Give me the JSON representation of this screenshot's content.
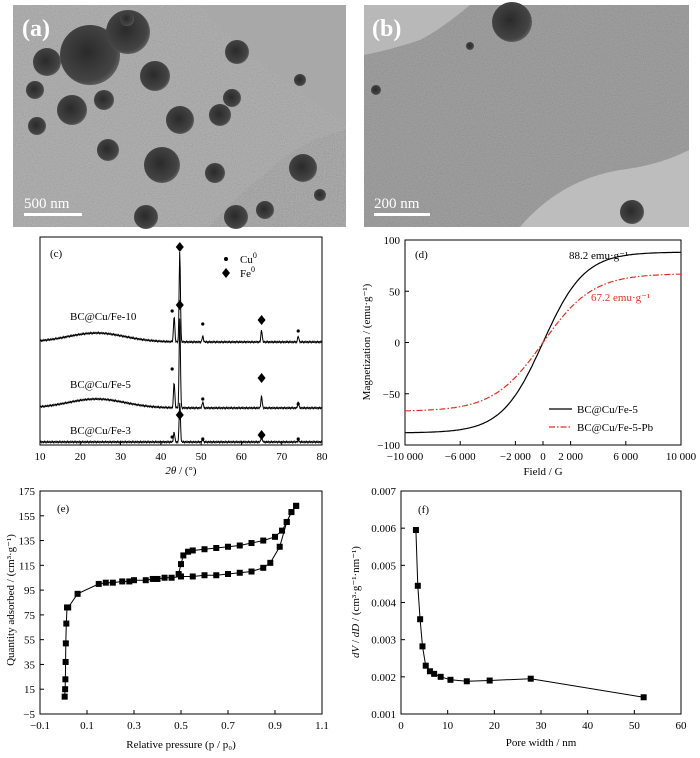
{
  "panels": {
    "a": {
      "label": "(a)",
      "scale_bar": "500 nm"
    },
    "b": {
      "label": "(b)",
      "scale_bar": "200 nm"
    }
  },
  "chart_data": [
    {
      "id": "c",
      "type": "line",
      "panel_label": "(c)",
      "xlabel_italic": "2θ",
      "xlabel_unit": " / (°)",
      "xlim": [
        10,
        80
      ],
      "xticks": [
        10,
        20,
        30,
        40,
        50,
        60,
        70,
        80
      ],
      "legend": [
        {
          "marker": "dot",
          "label": "Cu",
          "sup": "0"
        },
        {
          "marker": "diamond",
          "label": "Fe",
          "sup": "0"
        }
      ],
      "series": [
        {
          "name": "BC@Cu/Fe-10",
          "offset": 2.0
        },
        {
          "name": "BC@Cu/Fe-5",
          "offset": 1.0
        },
        {
          "name": "BC@Cu/Fe-3",
          "offset": 0.0
        }
      ],
      "fe_peaks": [
        44.7,
        65.0
      ],
      "cu_peaks": [
        43.3,
        50.4,
        74.1
      ]
    },
    {
      "id": "d",
      "type": "line",
      "panel_label": "(d)",
      "xlabel": "Field / G",
      "ylabel": "Magnetization / (emu·g⁻¹)",
      "xlim": [
        -10000,
        10000
      ],
      "ylim": [
        -100,
        100
      ],
      "xticks": [
        -10000,
        -6000,
        -2000,
        0,
        2000,
        6000,
        10000
      ],
      "xtick_labels": [
        "−10 000",
        "−6 000",
        "−2 000",
        "0",
        "2 000",
        "6 000",
        "10 000"
      ],
      "yticks": [
        -100,
        -50,
        0,
        50,
        100
      ],
      "ytick_labels": [
        "−100",
        "−50",
        "0",
        "50",
        "100"
      ],
      "series": [
        {
          "name": "BC@Cu/Fe-5",
          "color": "#000000",
          "ms": 88.2,
          "annotation": "88.2 emu·g⁻¹"
        },
        {
          "name": "BC@Cu/Fe-5-Pb",
          "color": "#e03020",
          "ms": 67.2,
          "annotation": "67.2 emu·g⁻¹"
        }
      ]
    },
    {
      "id": "e",
      "type": "scatter",
      "panel_label": "(e)",
      "xlabel": "Relative pressure (p / p₀)",
      "ylabel": "Quantity adsorbed / (cm³·g⁻¹)",
      "xlim": [
        -0.1,
        1.1
      ],
      "ylim": [
        -5,
        175
      ],
      "xticks": [
        -0.1,
        0.1,
        0.3,
        0.5,
        0.7,
        0.9,
        1.1
      ],
      "xtick_labels": [
        "−0.1",
        "0.1",
        "0.3",
        "0.5",
        "0.7",
        "0.9",
        "1.1"
      ],
      "yticks": [
        -5,
        15,
        35,
        55,
        75,
        95,
        115,
        135,
        155,
        175
      ],
      "ytick_labels": [
        "−5",
        "15",
        "35",
        "55",
        "75",
        "95",
        "115",
        "135",
        "155",
        "175"
      ],
      "adsorption": {
        "x": [
          0.005,
          0.007,
          0.008,
          0.009,
          0.01,
          0.012,
          0.015,
          0.02,
          0.06,
          0.15,
          0.18,
          0.21,
          0.25,
          0.28,
          0.3,
          0.35,
          0.38,
          0.4,
          0.43,
          0.46,
          0.5,
          0.55,
          0.6,
          0.65,
          0.7,
          0.75,
          0.8,
          0.85,
          0.88,
          0.92,
          0.95,
          0.97,
          0.99
        ],
        "y": [
          9,
          15,
          23,
          37,
          52,
          68,
          81,
          81,
          92,
          100,
          101,
          101,
          102,
          102,
          103,
          103,
          104,
          104,
          105,
          105,
          106,
          106,
          107,
          107,
          108,
          109,
          110,
          113,
          117,
          130,
          150,
          158,
          163
        ]
      },
      "desorption": {
        "x": [
          0.99,
          0.97,
          0.95,
          0.93,
          0.9,
          0.85,
          0.8,
          0.75,
          0.7,
          0.65,
          0.6,
          0.55,
          0.53,
          0.51,
          0.5,
          0.49
        ],
        "y": [
          163,
          158,
          150,
          143,
          138,
          135,
          133,
          131,
          130,
          129,
          128,
          127,
          126,
          123,
          116,
          108
        ]
      }
    },
    {
      "id": "f",
      "type": "line",
      "panel_label": "(f)",
      "xlabel": "Pore width / nm",
      "ylabel_italic1": "dV",
      "ylabel_mid": " / ",
      "ylabel_italic2": "dD",
      "ylabel_unit": " / (cm³·g⁻¹·nm⁻¹)",
      "xlim": [
        0,
        60
      ],
      "ylim": [
        0.001,
        0.007
      ],
      "xticks": [
        0,
        10,
        20,
        30,
        40,
        50,
        60
      ],
      "yticks": [
        0.001,
        0.002,
        0.003,
        0.004,
        0.005,
        0.006,
        0.007
      ],
      "ytick_labels": [
        "0.001",
        "0.002",
        "0.003",
        "0.004",
        "0.005",
        "0.006",
        "0.007"
      ],
      "x": [
        3.2,
        3.6,
        4.1,
        4.6,
        5.3,
        6.2,
        7.1,
        8.5,
        10.6,
        14.1,
        19.0,
        27.8,
        52.0
      ],
      "y": [
        0.00595,
        0.00445,
        0.00355,
        0.00282,
        0.0023,
        0.00215,
        0.00208,
        0.002,
        0.00192,
        0.00188,
        0.0019,
        0.00195,
        0.00145
      ]
    }
  ]
}
